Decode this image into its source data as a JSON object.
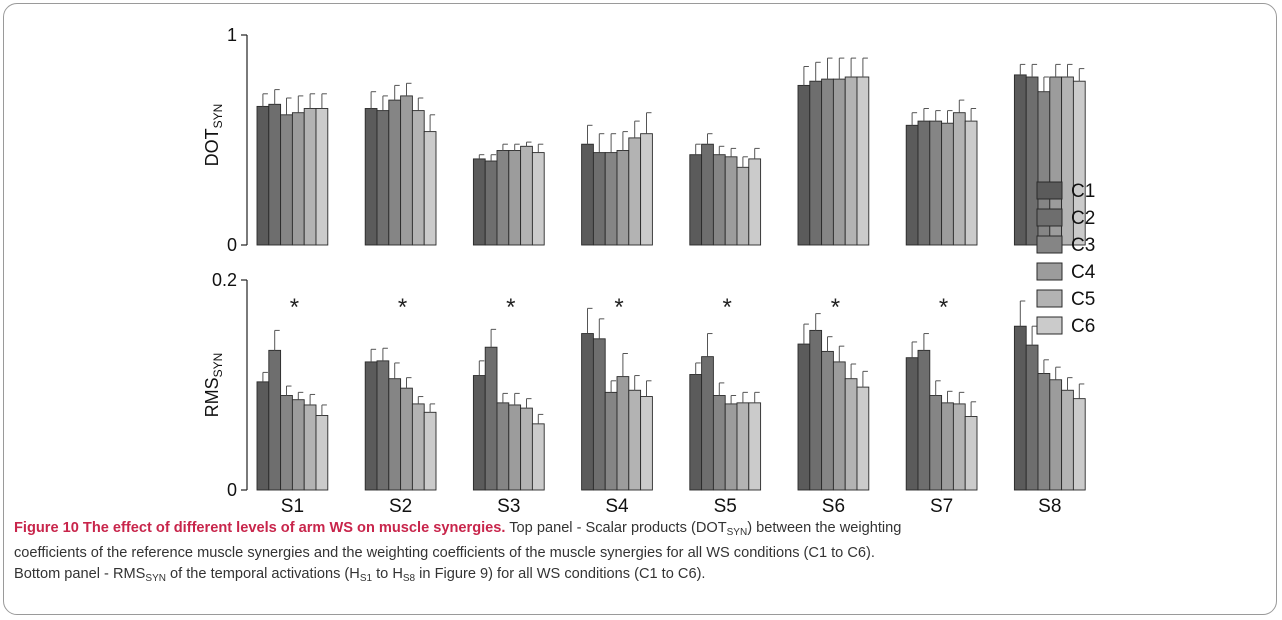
{
  "chart_data": [
    {
      "type": "bar",
      "panel": "top",
      "ylabel": "DOT",
      "ylabel_sub": "SYN",
      "yticks": [
        "1",
        "0"
      ],
      "ylim": [
        0,
        1
      ],
      "categories": [
        "S1",
        "S2",
        "S3",
        "S4",
        "S5",
        "S6",
        "S7",
        "S8"
      ],
      "series": [
        {
          "name": "C1",
          "values": [
            0.66,
            0.65,
            0.41,
            0.48,
            0.43,
            0.76,
            0.57,
            0.81
          ],
          "errors": [
            0.06,
            0.08,
            0.02,
            0.09,
            0.05,
            0.09,
            0.06,
            0.05
          ]
        },
        {
          "name": "C2",
          "values": [
            0.67,
            0.64,
            0.4,
            0.44,
            0.48,
            0.78,
            0.59,
            0.8
          ],
          "errors": [
            0.07,
            0.07,
            0.03,
            0.09,
            0.05,
            0.09,
            0.06,
            0.06
          ]
        },
        {
          "name": "C3",
          "values": [
            0.62,
            0.69,
            0.45,
            0.44,
            0.43,
            0.79,
            0.59,
            0.73
          ],
          "errors": [
            0.08,
            0.07,
            0.03,
            0.09,
            0.04,
            0.1,
            0.05,
            0.07
          ]
        },
        {
          "name": "C4",
          "values": [
            0.63,
            0.71,
            0.45,
            0.45,
            0.42,
            0.79,
            0.58,
            0.8
          ],
          "errors": [
            0.08,
            0.06,
            0.03,
            0.09,
            0.04,
            0.1,
            0.06,
            0.06
          ]
        },
        {
          "name": "C5",
          "values": [
            0.65,
            0.64,
            0.47,
            0.51,
            0.37,
            0.8,
            0.63,
            0.8
          ],
          "errors": [
            0.07,
            0.06,
            0.02,
            0.08,
            0.05,
            0.09,
            0.06,
            0.06
          ]
        },
        {
          "name": "C6",
          "values": [
            0.65,
            0.54,
            0.44,
            0.53,
            0.41,
            0.8,
            0.59,
            0.78
          ],
          "errors": [
            0.07,
            0.08,
            0.04,
            0.1,
            0.05,
            0.09,
            0.06,
            0.06
          ]
        }
      ],
      "colors": [
        "#5b5b5b",
        "#6e6e6e",
        "#858585",
        "#9c9c9c",
        "#b3b3b3",
        "#cbcbcb"
      ]
    },
    {
      "type": "bar",
      "panel": "bottom",
      "ylabel": "RMS",
      "ylabel_sub": "SYN",
      "yticks": [
        "0.2",
        "0"
      ],
      "ylim": [
        0,
        0.2
      ],
      "categories": [
        "S1",
        "S2",
        "S3",
        "S4",
        "S5",
        "S6",
        "S7",
        "S8"
      ],
      "significance_marker": "*",
      "series": [
        {
          "name": "C1",
          "values": [
            0.103,
            0.122,
            0.109,
            0.149,
            0.11,
            0.139,
            0.126,
            0.156
          ],
          "errors": [
            0.009,
            0.012,
            0.014,
            0.024,
            0.011,
            0.019,
            0.015,
            0.024
          ]
        },
        {
          "name": "C2",
          "values": [
            0.133,
            0.123,
            0.136,
            0.144,
            0.127,
            0.152,
            0.133,
            0.138
          ],
          "errors": [
            0.019,
            0.012,
            0.017,
            0.019,
            0.022,
            0.016,
            0.016,
            0.018
          ]
        },
        {
          "name": "C3",
          "values": [
            0.09,
            0.106,
            0.083,
            0.093,
            0.09,
            0.132,
            0.09,
            0.111
          ],
          "errors": [
            0.009,
            0.015,
            0.009,
            0.011,
            0.012,
            0.014,
            0.014,
            0.013
          ]
        },
        {
          "name": "C4",
          "values": [
            0.086,
            0.097,
            0.081,
            0.108,
            0.082,
            0.122,
            0.083,
            0.105
          ],
          "errors": [
            0.007,
            0.01,
            0.011,
            0.022,
            0.008,
            0.015,
            0.011,
            0.012
          ]
        },
        {
          "name": "C5",
          "values": [
            0.081,
            0.082,
            0.078,
            0.095,
            0.083,
            0.106,
            0.082,
            0.095
          ],
          "errors": [
            0.01,
            0.007,
            0.009,
            0.014,
            0.01,
            0.014,
            0.011,
            0.012
          ]
        },
        {
          "name": "C6",
          "values": [
            0.071,
            0.074,
            0.063,
            0.089,
            0.083,
            0.098,
            0.07,
            0.087
          ],
          "errors": [
            0.01,
            0.008,
            0.009,
            0.015,
            0.01,
            0.015,
            0.014,
            0.014
          ]
        }
      ],
      "colors": [
        "#5b5b5b",
        "#6e6e6e",
        "#858585",
        "#9c9c9c",
        "#b3b3b3",
        "#cbcbcb"
      ]
    }
  ],
  "legend": [
    "C1",
    "C2",
    "C3",
    "C4",
    "C5",
    "C6"
  ],
  "caption": {
    "title": "Figure 10 The effect of different levels of arm WS on muscle synergies.",
    "line1_a": " Top panel - Scalar products (DOT",
    "line1_sub": "SYN",
    "line1_b": ") between the weighting",
    "line2": "coefficients of the reference muscle synergies and the weighting coefficients of the muscle synergies for all WS conditions (C1 to C6).",
    "line3_a": "Bottom panel - RMS",
    "line3_sub1": "SYN",
    "line3_b": " of the temporal activations (H",
    "line3_sub2": "S1",
    "line3_c": " to H",
    "line3_sub3": "S8",
    "line3_d": " in Figure 9) for all WS conditions (C1 to C6)."
  }
}
